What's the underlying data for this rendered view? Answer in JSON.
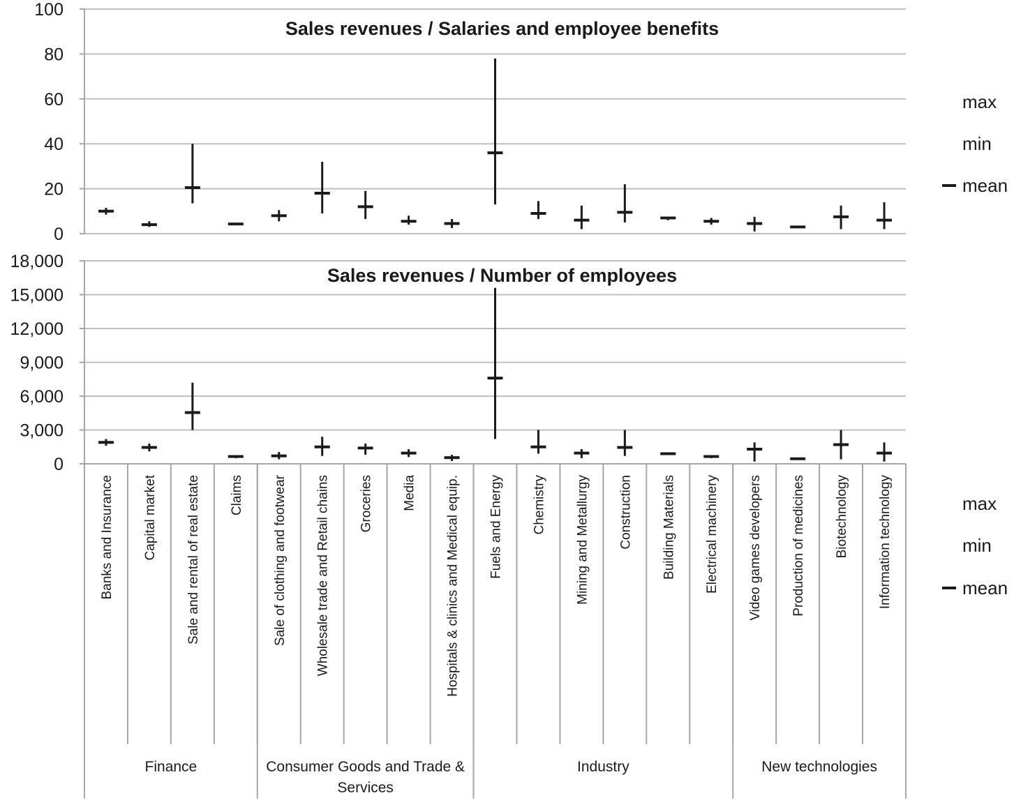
{
  "chart_data": [
    {
      "type": "hi-low-mean",
      "title": "Sales revenues / Salaries and employee benefits",
      "ylim": [
        0,
        100
      ],
      "yticks": [
        "0",
        "20",
        "40",
        "60",
        "80",
        "100"
      ],
      "grid": true,
      "legend": {
        "position": "right",
        "entries": [
          "max",
          "min",
          "mean"
        ]
      },
      "categories": [
        "Banks and Insurance",
        "Capital market",
        "Sale and rental of real estate",
        "Claims",
        "Sale of clothing and footwear",
        "Wholesale trade and Retail chains",
        "Groceries",
        "Media",
        "Hospitals & clinics and Medical equip.",
        "Fuels and Energy",
        "Chemistry",
        "Mining and Metallurgy",
        "Construction",
        "Building Materials",
        "Electrical machinery",
        "Video games developers",
        "Production of medicines",
        "Biotechnology",
        "Information technology"
      ],
      "max": [
        11.5,
        5.5,
        40,
        4.3,
        10.5,
        32,
        19,
        8,
        6.5,
        78,
        14.5,
        12.5,
        22,
        7.5,
        7,
        7.5,
        3.5,
        12.5,
        14
      ],
      "min": [
        8.5,
        3,
        13.5,
        4.3,
        5.5,
        9,
        6.5,
        4,
        2.5,
        13,
        6.5,
        2,
        5,
        6,
        4,
        1,
        2.5,
        2,
        2
      ],
      "mean": [
        10,
        4,
        20.5,
        4.3,
        8,
        18,
        12,
        5.5,
        4.5,
        36,
        9,
        6,
        9.5,
        7,
        5.5,
        4.5,
        3,
        7.5,
        6
      ]
    },
    {
      "type": "hi-low-mean",
      "title": "Sales revenues / Number of employees",
      "ylim": [
        0,
        18000
      ],
      "yticks": [
        "0",
        "3,000",
        "6,000",
        "9,000",
        "12,000",
        "15,000",
        "18,000"
      ],
      "grid": true,
      "legend": {
        "position": "right",
        "entries": [
          "max",
          "min",
          "mean"
        ]
      },
      "categories": [
        "Banks and Insurance",
        "Capital market",
        "Sale and rental of real estate",
        "Claims",
        "Sale of clothing and footwear",
        "Wholesale trade and Retail chains",
        "Groceries",
        "Media",
        "Hospitals & clinics and Medical equip.",
        "Fuels and Energy",
        "Chemistry",
        "Mining and Metallurgy",
        "Construction",
        "Building Materials",
        "Electrical machinery",
        "Video games developers",
        "Production of medicines",
        "Biotechnology",
        "Information technology"
      ],
      "max": [
        2200,
        1800,
        7200,
        700,
        1050,
        2400,
        1800,
        1300,
        800,
        15600,
        3000,
        1300,
        3000,
        950,
        750,
        1900,
        550,
        3000,
        1900
      ],
      "min": [
        1600,
        1100,
        3000,
        500,
        400,
        700,
        800,
        600,
        250,
        2200,
        900,
        500,
        700,
        800,
        500,
        200,
        350,
        400,
        200
      ],
      "mean": [
        1900,
        1450,
        4550,
        650,
        700,
        1500,
        1400,
        950,
        550,
        7600,
        1500,
        950,
        1450,
        900,
        650,
        1300,
        450,
        1700,
        950
      ]
    }
  ],
  "groups": [
    {
      "label": "Finance",
      "count": 4
    },
    {
      "label": "Consumer Goods and Trade & Services",
      "count": 5
    },
    {
      "label": "Industry",
      "count": 6
    },
    {
      "label": "New technologies",
      "count": 4
    }
  ],
  "colors": {
    "grid": "#bfbfbf",
    "axis": "#a6a6a6",
    "mark": "#1a1a1a",
    "text": "#1a1a1a"
  }
}
